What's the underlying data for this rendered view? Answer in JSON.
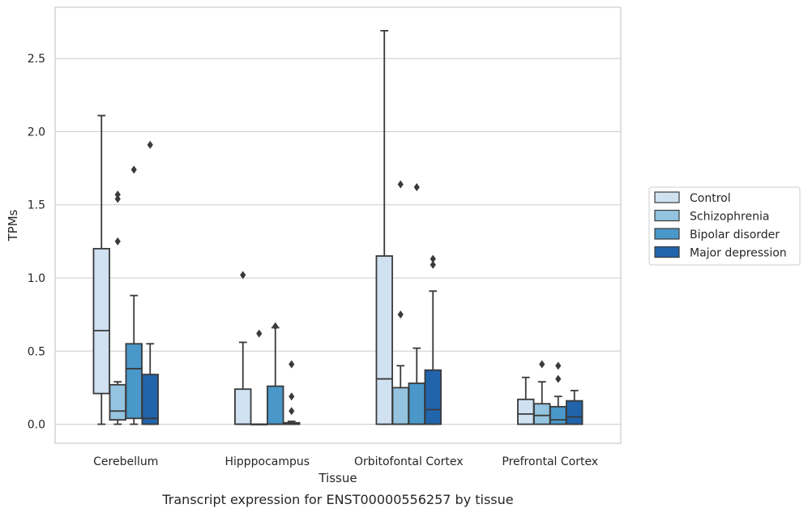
{
  "chart_data": {
    "type": "boxplot",
    "title": "",
    "caption": "Transcript expression for ENST00000556257 by tissue",
    "xlabel": "Tissue",
    "ylabel": "TPMs",
    "ylim": [
      -0.13,
      2.85
    ],
    "yticks": [
      0.0,
      0.5,
      1.0,
      1.5,
      2.0,
      2.5
    ],
    "ytick_labels": [
      "0.0",
      "0.5",
      "1.0",
      "1.5",
      "2.0",
      "2.5"
    ],
    "grid": "horizontal",
    "legend_position": "right",
    "categories": [
      "Cerebellum",
      "Hipppocampus",
      "Orbitofontal Cortex",
      "Prefrontal Cortex"
    ],
    "series": [
      {
        "name": "Control",
        "color": "#d0e1f2",
        "boxes": [
          {
            "whislo": 0.0,
            "q1": 0.21,
            "med": 0.64,
            "q3": 1.2,
            "whishi": 2.11,
            "fliers": []
          },
          {
            "whislo": 0.0,
            "q1": 0.0,
            "med": 0.0,
            "q3": 0.24,
            "whishi": 0.56,
            "fliers": [
              1.02
            ]
          },
          {
            "whislo": 0.0,
            "q1": 0.0,
            "med": 0.31,
            "q3": 1.15,
            "whishi": 2.69,
            "fliers": []
          },
          {
            "whislo": 0.0,
            "q1": 0.0,
            "med": 0.07,
            "q3": 0.17,
            "whishi": 0.32,
            "fliers": []
          }
        ]
      },
      {
        "name": "Schizophrenia",
        "color": "#94c4df",
        "boxes": [
          {
            "whislo": 0.0,
            "q1": 0.03,
            "med": 0.09,
            "q3": 0.27,
            "whishi": 0.29,
            "fliers": [
              1.25,
              1.54,
              1.57
            ]
          },
          {
            "whislo": 0.0,
            "q1": 0.0,
            "med": 0.0,
            "q3": 0.0,
            "whishi": 0.0,
            "fliers": [
              0.62
            ]
          },
          {
            "whislo": 0.0,
            "q1": 0.0,
            "med": 0.0,
            "q3": 0.25,
            "whishi": 0.4,
            "fliers": [
              0.75,
              1.64
            ]
          },
          {
            "whislo": 0.0,
            "q1": 0.0,
            "med": 0.06,
            "q3": 0.14,
            "whishi": 0.29,
            "fliers": [
              0.41
            ]
          }
        ]
      },
      {
        "name": "Bipolar disorder",
        "color": "#4a98c9",
        "boxes": [
          {
            "whislo": 0.0,
            "q1": 0.04,
            "med": 0.38,
            "q3": 0.55,
            "whishi": 0.88,
            "fliers": [
              1.74
            ]
          },
          {
            "whislo": 0.0,
            "q1": 0.0,
            "med": 0.0,
            "q3": 0.26,
            "whishi": 0.66,
            "fliers": [
              0.67
            ]
          },
          {
            "whislo": 0.0,
            "q1": 0.0,
            "med": 0.0,
            "q3": 0.28,
            "whishi": 0.52,
            "fliers": [
              1.62
            ]
          },
          {
            "whislo": 0.0,
            "q1": 0.0,
            "med": 0.03,
            "q3": 0.12,
            "whishi": 0.19,
            "fliers": [
              0.31,
              0.4
            ]
          }
        ]
      },
      {
        "name": "Major depression",
        "color": "#2164ab",
        "boxes": [
          {
            "whislo": 0.0,
            "q1": 0.0,
            "med": 0.04,
            "q3": 0.34,
            "whishi": 0.55,
            "fliers": [
              1.91
            ]
          },
          {
            "whislo": 0.0,
            "q1": 0.0,
            "med": 0.0,
            "q3": 0.01,
            "whishi": 0.02,
            "fliers": [
              0.09,
              0.19,
              0.41
            ]
          },
          {
            "whislo": 0.0,
            "q1": 0.0,
            "med": 0.1,
            "q3": 0.37,
            "whishi": 0.91,
            "fliers": [
              1.09,
              1.13
            ]
          },
          {
            "whislo": 0.0,
            "q1": 0.0,
            "med": 0.05,
            "q3": 0.16,
            "whishi": 0.23,
            "fliers": []
          }
        ]
      }
    ]
  }
}
